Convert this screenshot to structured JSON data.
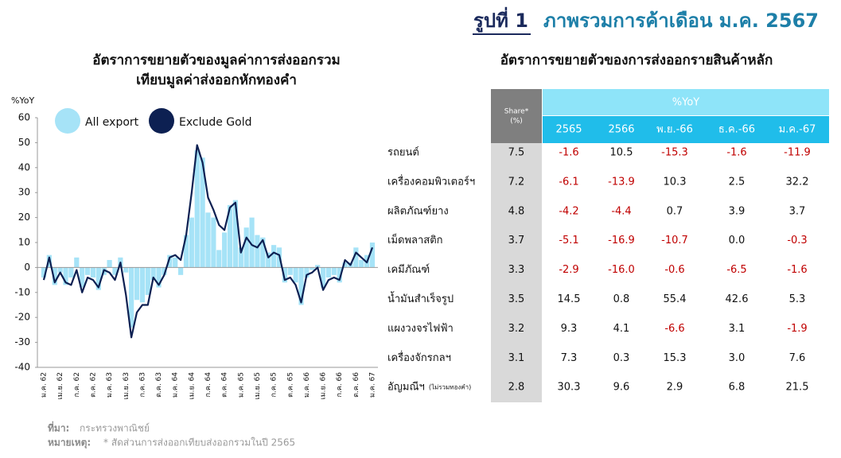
{
  "header": {
    "figure_label": "รูปที่ 1",
    "title": "ภาพรวมการค้าเดือน ม.ค. 2567"
  },
  "chart_data": {
    "type": "bar_line",
    "title": "อัตราการขยายตัวของมูลค่าการส่งออกรวม",
    "subtitle": "เทียบมูลค่าส่งออกหักทองคำ",
    "y_label": "%YoY",
    "categories": [
      "ม.ค. 62",
      null,
      null,
      "เม.ย. 62",
      null,
      null,
      "ก.ค. 62",
      null,
      null,
      "ต.ค. 62",
      null,
      null,
      "ม.ค. 63",
      null,
      null,
      "เม.ย. 63",
      null,
      null,
      "ก.ค. 63",
      null,
      null,
      "ต.ค. 63",
      null,
      null,
      "ม.ค. 64",
      null,
      null,
      "เม.ย. 64",
      null,
      null,
      "ก.ค. 64",
      null,
      null,
      "ต.ค. 64",
      null,
      null,
      "ม.ค. 65",
      null,
      null,
      "เม.ย. 65",
      null,
      null,
      "ก.ค. 65",
      null,
      null,
      "ต.ค. 65",
      null,
      null,
      "ม.ค. 66",
      null,
      null,
      "เม.ย. 66",
      null,
      null,
      "ก.ค. 66",
      null,
      null,
      "ต.ค. 66",
      null,
      null,
      "ม.ค. 67"
    ],
    "series": [
      {
        "name": "All export",
        "type": "bar",
        "color": "#a6e3f7",
        "values": [
          -4,
          5,
          -7,
          -2,
          -7,
          -4,
          4,
          -8,
          -3,
          -4,
          -9,
          -3,
          3,
          -3,
          4,
          -2,
          -24,
          -13,
          -14,
          -11,
          -5,
          -8,
          -3,
          5,
          4,
          -3,
          13,
          20,
          47,
          44,
          22,
          20,
          7,
          14,
          25,
          27,
          8,
          16,
          20,
          13,
          12,
          6,
          9,
          8,
          -6,
          -3,
          -6,
          -15,
          -4,
          -1,
          1,
          -8,
          -4,
          -3,
          -6,
          2,
          2,
          8,
          3,
          5,
          10
        ]
      },
      {
        "name": "Exclude Gold",
        "type": "line",
        "color": "#0d2052",
        "values": [
          -5,
          4,
          -6,
          -2,
          -6,
          -7,
          -1,
          -10,
          -4,
          -5,
          -8,
          -1,
          -2,
          -5,
          2,
          -11,
          -28,
          -18,
          -15,
          -15,
          -4,
          -7,
          -3,
          4,
          5,
          3,
          13,
          30,
          49,
          42,
          28,
          23,
          17,
          15,
          24,
          26,
          6,
          12,
          9,
          8,
          11,
          4,
          6,
          5,
          -5,
          -4,
          -7,
          -14,
          -3,
          -2,
          0,
          -9,
          -5,
          -4,
          -5,
          3,
          1,
          6,
          4,
          2,
          8
        ]
      }
    ],
    "ylim": [
      -40,
      60
    ],
    "yticks": [
      -40,
      -30,
      -20,
      -10,
      0,
      10,
      20,
      30,
      40,
      50,
      60
    ],
    "grid": false,
    "legend": "top-left"
  },
  "table": {
    "title": "อัตราการขยายตัวของการส่งออกรายสินค้าหลัก",
    "share_header": [
      "Share*",
      "(%)"
    ],
    "group_header": "%YoY",
    "columns": [
      "2565",
      "2566",
      "พ.ย.-66",
      "ธ.ค.-66",
      "ม.ค.-67"
    ],
    "rows": [
      {
        "name": "รถยนต์",
        "share": "7.5",
        "values": [
          "-1.6",
          "10.5",
          "-15.3",
          "-1.6",
          "-11.9"
        ]
      },
      {
        "name": "เครื่องคอมพิวเตอร์ฯ",
        "share": "7.2",
        "values": [
          "-6.1",
          "-13.9",
          "10.3",
          "2.5",
          "32.2"
        ]
      },
      {
        "name": "ผลิตภัณฑ์ยาง",
        "share": "4.8",
        "values": [
          "-4.2",
          "-4.4",
          "0.7",
          "3.9",
          "3.7"
        ]
      },
      {
        "name": "เม็ดพลาสติก",
        "share": "3.7",
        "values": [
          "-5.1",
          "-16.9",
          "-10.7",
          "0.0",
          "-0.3"
        ]
      },
      {
        "name": "เคมีภัณฑ์",
        "share": "3.3",
        "values": [
          "-2.9",
          "-16.0",
          "-0.6",
          "-6.5",
          "-1.6"
        ]
      },
      {
        "name": "น้ำมันสำเร็จรูป",
        "share": "3.5",
        "values": [
          "14.5",
          "0.8",
          "55.4",
          "42.6",
          "5.3"
        ]
      },
      {
        "name": "แผงวงจรไฟฟ้า",
        "share": "3.2",
        "values": [
          "9.3",
          "4.1",
          "-6.6",
          "3.1",
          "-1.9"
        ]
      },
      {
        "name": "เครื่องจักรกลฯ",
        "share": "3.1",
        "values": [
          "7.3",
          "0.3",
          "15.3",
          "3.0",
          "7.6"
        ]
      },
      {
        "name": "อัญมณีฯ",
        "note": "(ไม่รวมทองคำ)",
        "share": "2.8",
        "values": [
          "30.3",
          "9.6",
          "2.9",
          "6.8",
          "21.5"
        ]
      }
    ]
  },
  "footer": {
    "source_label": "ที่มา:",
    "source": "กระทรวงพาณิชย์",
    "note_label": "หมายเหตุ:",
    "note": "* สัดส่วนการส่งออกเทียบส่งออกรวมในปี 2565"
  }
}
